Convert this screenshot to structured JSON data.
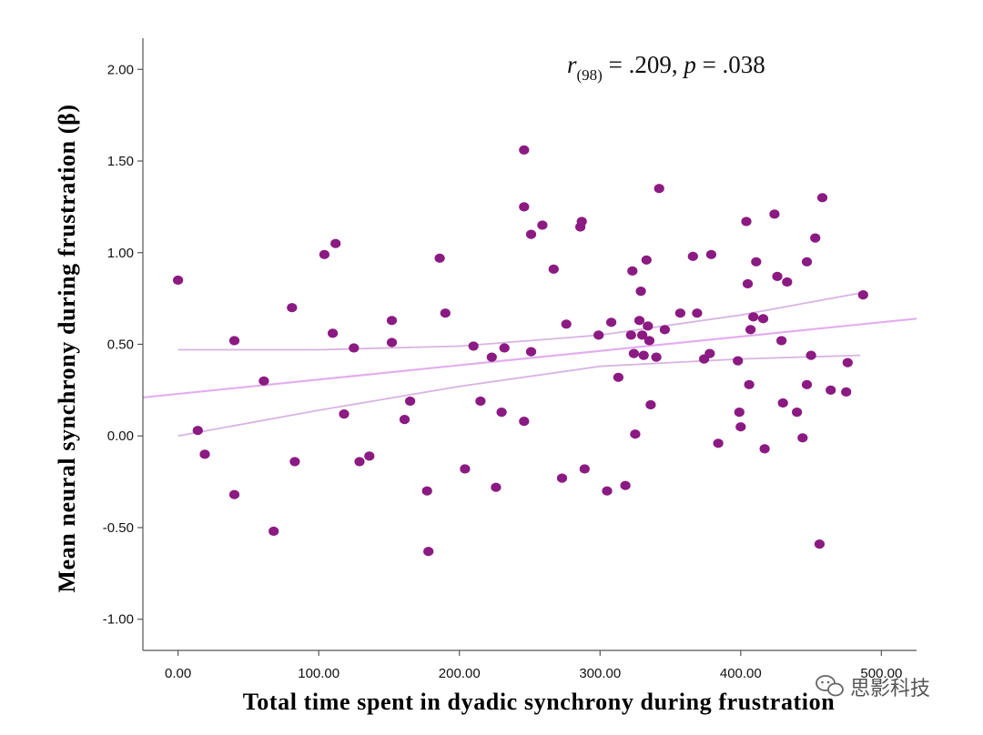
{
  "chart_data": {
    "type": "scatter",
    "xlabel": "Total time spent in dyadic synchrony during frustration",
    "ylabel": "Mean neural synchrony during frustration (β)",
    "xlim": [
      -25,
      525
    ],
    "ylim": [
      -1.17,
      2.17
    ],
    "x_ticks": [
      0,
      100,
      200,
      300,
      400,
      500
    ],
    "x_tick_labels": [
      "0.00",
      "100.00",
      "200.00",
      "300.00",
      "400.00",
      "500.00"
    ],
    "y_ticks": [
      -1,
      -0.5,
      0,
      0.5,
      1,
      1.5,
      2
    ],
    "y_tick_labels": [
      "-1.00",
      "-0.50",
      "0.00",
      "0.50",
      "1.00",
      "1.50",
      "2.00"
    ],
    "grid": false,
    "colors": {
      "points": "#8b1a82",
      "fit_line": "#e3aeef",
      "ci_lines": "#d8b4e2",
      "axis": "#555555"
    },
    "annotation": {
      "r_symbol": "r",
      "df": "(98)",
      "r_value_text": " = .209, ",
      "p_symbol": "p",
      "p_value_text": " = .038"
    },
    "fit_line": {
      "x0": -25,
      "y0": 0.21,
      "x1": 525,
      "y1": 0.64
    },
    "ci_upper": [
      [
        0,
        0.47
      ],
      [
        100,
        0.47
      ],
      [
        200,
        0.49
      ],
      [
        300,
        0.55
      ],
      [
        400,
        0.66
      ],
      [
        485,
        0.78
      ]
    ],
    "ci_lower": [
      [
        0,
        0.0
      ],
      [
        100,
        0.14
      ],
      [
        200,
        0.27
      ],
      [
        300,
        0.38
      ],
      [
        400,
        0.42
      ],
      [
        485,
        0.44
      ]
    ],
    "points": [
      [
        0,
        0.85
      ],
      [
        14,
        0.03
      ],
      [
        19,
        -0.1
      ],
      [
        40,
        0.52
      ],
      [
        40,
        -0.32
      ],
      [
        61,
        0.3
      ],
      [
        68,
        -0.52
      ],
      [
        81,
        0.7
      ],
      [
        83,
        -0.14
      ],
      [
        104,
        0.99
      ],
      [
        110,
        0.56
      ],
      [
        112,
        1.05
      ],
      [
        118,
        0.12
      ],
      [
        125,
        0.48
      ],
      [
        129,
        -0.14
      ],
      [
        136,
        -0.11
      ],
      [
        152,
        0.63
      ],
      [
        152,
        0.51
      ],
      [
        161,
        0.09
      ],
      [
        165,
        0.19
      ],
      [
        177,
        -0.3
      ],
      [
        178,
        -0.63
      ],
      [
        186,
        0.97
      ],
      [
        190,
        0.67
      ],
      [
        204,
        -0.18
      ],
      [
        210,
        0.49
      ],
      [
        215,
        0.19
      ],
      [
        223,
        0.43
      ],
      [
        226,
        -0.28
      ],
      [
        230,
        0.13
      ],
      [
        232,
        0.48
      ],
      [
        246,
        1.56
      ],
      [
        246,
        1.25
      ],
      [
        246,
        0.08
      ],
      [
        251,
        1.1
      ],
      [
        251,
        0.46
      ],
      [
        259,
        1.15
      ],
      [
        267,
        0.91
      ],
      [
        273,
        -0.23
      ],
      [
        276,
        0.61
      ],
      [
        286,
        1.14
      ],
      [
        287,
        1.17
      ],
      [
        289,
        -0.18
      ],
      [
        299,
        0.55
      ],
      [
        305,
        -0.3
      ],
      [
        308,
        0.62
      ],
      [
        313,
        0.32
      ],
      [
        318,
        -0.27
      ],
      [
        322,
        0.55
      ],
      [
        323,
        0.9
      ],
      [
        324,
        0.45
      ],
      [
        325,
        0.01
      ],
      [
        328,
        0.63
      ],
      [
        329,
        0.79
      ],
      [
        330,
        0.55
      ],
      [
        331,
        0.44
      ],
      [
        333,
        0.96
      ],
      [
        334,
        0.6
      ],
      [
        335,
        0.52
      ],
      [
        336,
        0.17
      ],
      [
        340,
        0.43
      ],
      [
        342,
        1.35
      ],
      [
        346,
        0.58
      ],
      [
        357,
        0.67
      ],
      [
        366,
        0.98
      ],
      [
        369,
        0.67
      ],
      [
        374,
        0.42
      ],
      [
        378,
        0.45
      ],
      [
        379,
        0.99
      ],
      [
        384,
        -0.04
      ],
      [
        398,
        0.41
      ],
      [
        399,
        0.13
      ],
      [
        400,
        0.05
      ],
      [
        404,
        1.17
      ],
      [
        405,
        0.83
      ],
      [
        406,
        0.28
      ],
      [
        407,
        0.58
      ],
      [
        409,
        0.65
      ],
      [
        411,
        0.95
      ],
      [
        416,
        0.64
      ],
      [
        417,
        -0.07
      ],
      [
        424,
        1.21
      ],
      [
        426,
        0.87
      ],
      [
        429,
        0.52
      ],
      [
        430,
        0.18
      ],
      [
        433,
        0.84
      ],
      [
        440,
        0.13
      ],
      [
        444,
        -0.01
      ],
      [
        447,
        0.28
      ],
      [
        447,
        0.95
      ],
      [
        450,
        0.44
      ],
      [
        453,
        1.08
      ],
      [
        456,
        -0.59
      ],
      [
        458,
        1.3
      ],
      [
        464,
        0.25
      ],
      [
        475,
        0.24
      ],
      [
        476,
        0.4
      ],
      [
        487,
        0.77
      ]
    ]
  },
  "watermark": {
    "icon": "wechat-icon",
    "text": "思影科技"
  }
}
